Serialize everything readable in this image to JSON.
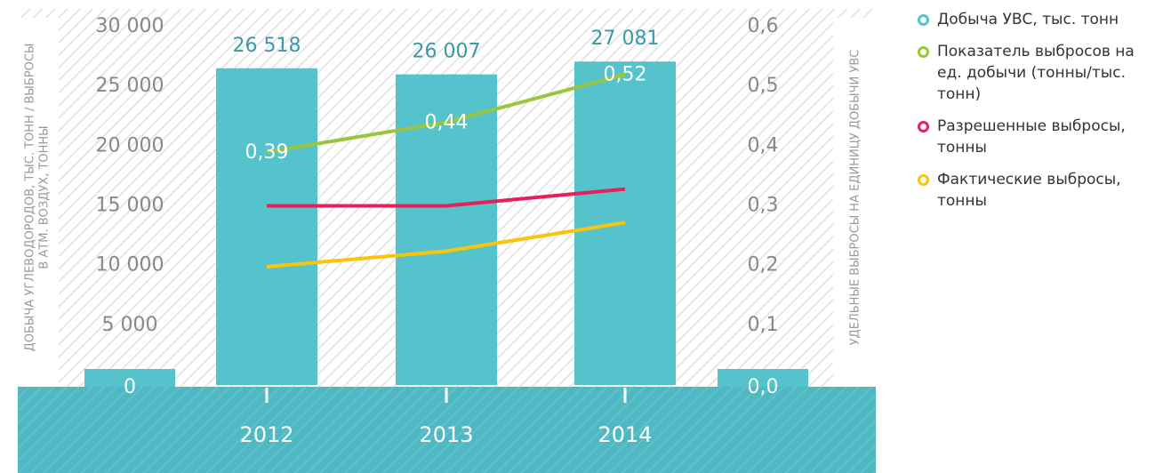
{
  "chart_data": {
    "type": "bar",
    "categories": [
      "2012",
      "2013",
      "2014"
    ],
    "ylabel": [
      "ДОБЫЧА УГЛЕВОДОРОДОВ, ТЫС. ТОНН / ВЫБРОСЫ",
      "В АТМ. ВОЗДУХ, ТОННЫ"
    ],
    "y2label": "УДЕЛЬНЫЕ ВЫБРОСЫ НА ЕДИНИЦУ ДОБЫЧИ УВС",
    "ylim": [
      0,
      30000
    ],
    "yticks": [
      {
        "value": 0,
        "label": "0"
      },
      {
        "value": 5000,
        "label": "5 000"
      },
      {
        "value": 10000,
        "label": "10 000"
      },
      {
        "value": 15000,
        "label": "15 000"
      },
      {
        "value": 20000,
        "label": "20 000"
      },
      {
        "value": 25000,
        "label": "25 000"
      },
      {
        "value": 30000,
        "label": "30 000"
      }
    ],
    "y2lim": [
      0,
      0.6
    ],
    "y2ticks": [
      {
        "value": 0,
        "label": "0,0"
      },
      {
        "value": 0.1,
        "label": "0,1"
      },
      {
        "value": 0.2,
        "label": "0,2"
      },
      {
        "value": 0.3,
        "label": "0,3"
      },
      {
        "value": 0.4,
        "label": "0,4"
      },
      {
        "value": 0.5,
        "label": "0,5"
      },
      {
        "value": 0.6,
        "label": "0,6"
      }
    ],
    "series": [
      {
        "name": "Добыча УВС, тыс. тонн",
        "type": "bar",
        "color": "#55c3cc",
        "values": [
          26518,
          26007,
          27081
        ],
        "value_labels": [
          "26 518",
          "26 007",
          "27 081"
        ]
      },
      {
        "name": "Показатель выбросов на ед. добычи (тонны/тыс. тонн)",
        "type": "line",
        "axis": "y2",
        "color": "#9bc53d",
        "values": [
          0.39,
          0.44,
          0.52
        ],
        "value_labels": [
          "0,39",
          "0,44",
          "0,52"
        ]
      },
      {
        "name": "Разрешенные выбросы, тонны",
        "type": "line",
        "color": "#e5215a",
        "values": [
          15000,
          15000,
          16400
        ]
      },
      {
        "name": "Фактические выбросы, тонны",
        "type": "line",
        "color": "#fcc30b",
        "values": [
          9900,
          11200,
          13600
        ]
      }
    ]
  }
}
